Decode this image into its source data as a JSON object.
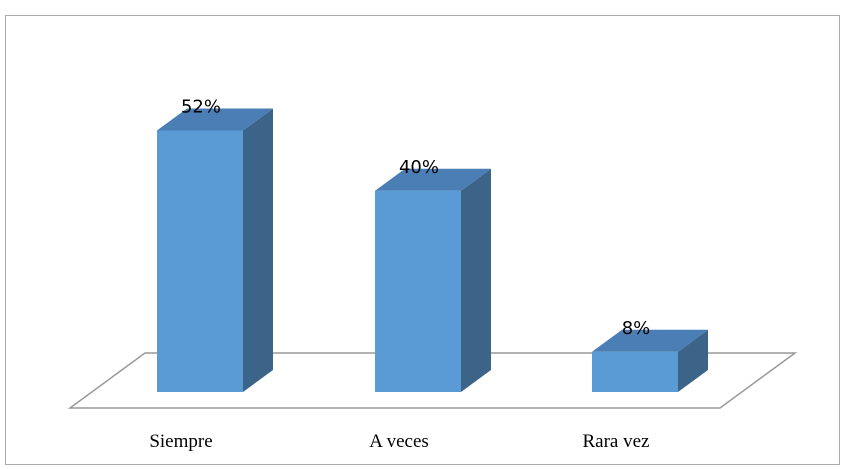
{
  "chart_data": {
    "type": "bar3d",
    "categories": [
      "Siempre",
      "A veces",
      "Rara vez"
    ],
    "values": [
      52,
      40,
      8
    ],
    "value_labels": [
      "52%",
      "40%",
      "8%"
    ],
    "color": "#5b9bd5"
  }
}
